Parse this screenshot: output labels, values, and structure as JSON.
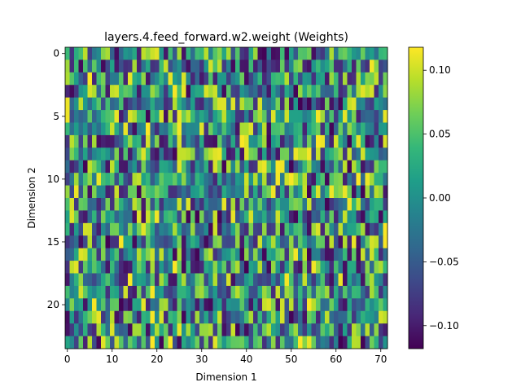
{
  "chart_data": {
    "type": "heatmap",
    "title": "layers.4.feed_forward.w2.weight (Weights)",
    "xlabel": "Dimension 1",
    "ylabel": "Dimension 2",
    "rows": 24,
    "cols": 72,
    "x_ticks": [
      "0",
      "10",
      "20",
      "30",
      "40",
      "50",
      "60",
      "70"
    ],
    "y_ticks": [
      "0",
      "5",
      "10",
      "15",
      "20"
    ],
    "colorbar": {
      "min": -0.118,
      "max": 0.118,
      "ticks": [
        -0.1,
        -0.05,
        0.0,
        0.05,
        0.1
      ],
      "tick_labels": [
        "−0.10",
        "−0.05",
        "0.00",
        "0.05",
        "0.10"
      ]
    },
    "colormap": "viridis",
    "values_note": "",
    "seed": 4
  }
}
